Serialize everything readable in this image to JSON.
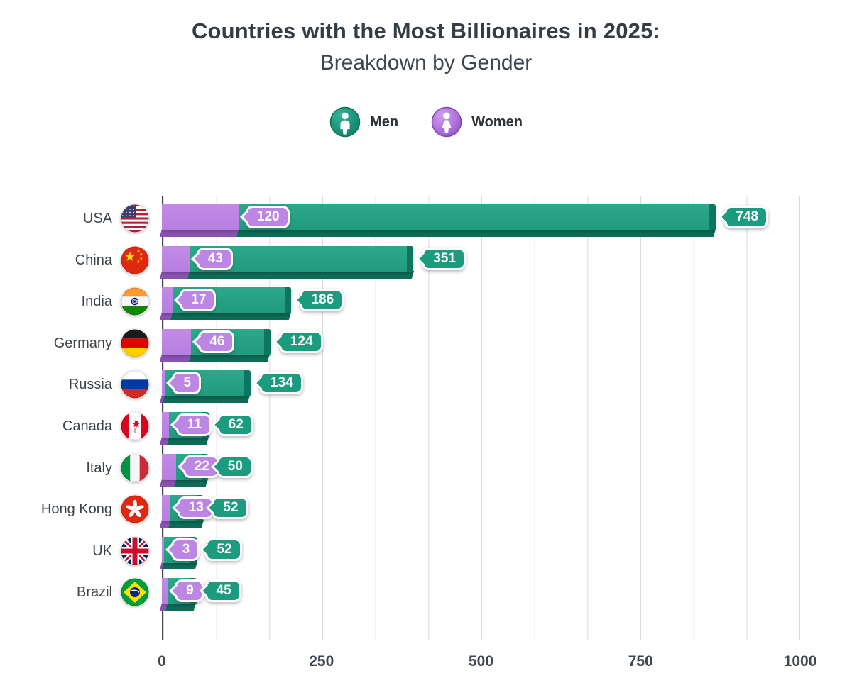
{
  "title": {
    "line1": "Countries with the Most Billionaires in 2025:",
    "line2": "Breakdown by Gender"
  },
  "legend": {
    "men_label": "Men",
    "women_label": "Women",
    "men_color": "#1b9c7e",
    "women_color": "#bd86e4",
    "men_icon": "man-icon",
    "women_icon": "woman-icon"
  },
  "chart_data": {
    "type": "bar",
    "orientation": "horizontal",
    "stacked": true,
    "title": "Countries with the Most Billionaires in 2025: Breakdown by Gender",
    "xlabel": "",
    "ylabel": "",
    "xlim": [
      0,
      1000
    ],
    "xticks": [
      "0",
      "250",
      "500",
      "750",
      "1000"
    ],
    "grid": "vertical",
    "legend_position": "top",
    "categories": [
      "USA",
      "China",
      "India",
      "Germany",
      "Russia",
      "Canada",
      "Italy",
      "Hong Kong",
      "UK",
      "Brazil"
    ],
    "flags": [
      "usa-flag-icon",
      "china-flag-icon",
      "india-flag-icon",
      "germany-flag-icon",
      "russia-flag-icon",
      "canada-flag-icon",
      "italy-flag-icon",
      "hongkong-flag-icon",
      "uk-flag-icon",
      "brazil-flag-icon"
    ],
    "series": [
      {
        "name": "Women",
        "color": "#bd86e4",
        "values": [
          120,
          43,
          17,
          46,
          5,
          11,
          22,
          13,
          3,
          9
        ]
      },
      {
        "name": "Men",
        "color": "#1b9c7e",
        "values": [
          748,
          351,
          186,
          124,
          134,
          62,
          50,
          52,
          52,
          45
        ]
      }
    ]
  }
}
